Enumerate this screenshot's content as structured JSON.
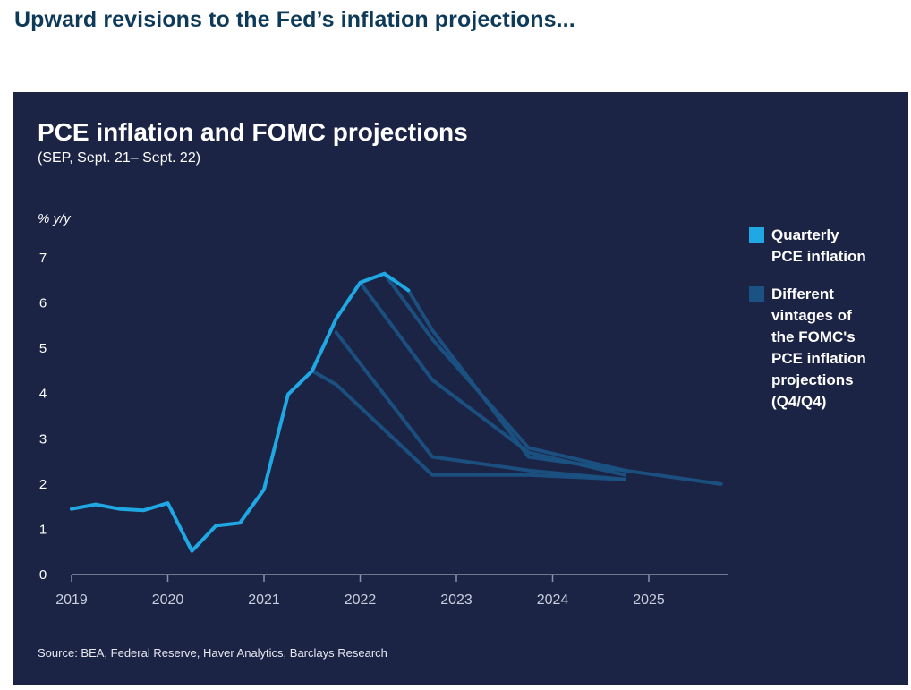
{
  "page": {
    "heading": "Upward revisions to the Fed’s inflation projections..."
  },
  "chart_data": {
    "type": "line",
    "title": "PCE inflation and FOMC projections",
    "subtitle": "(SEP, Sept. 21– Sept. 22)",
    "ylabel": "% y/y",
    "xlabel": "",
    "xlim": [
      2019,
      2026
    ],
    "ylim": [
      0,
      7
    ],
    "y_ticks": [
      "0",
      "1",
      "2",
      "3",
      "4",
      "5",
      "6",
      "7"
    ],
    "x_ticks": [
      "2019",
      "2020",
      "2021",
      "2022",
      "2023",
      "2024",
      "2025"
    ],
    "grid": false,
    "legend_position": "right",
    "colors": {
      "actual": "#1fa8e3",
      "projection": "#1a5283",
      "background": "#1c2445",
      "axis": "#8a93ad"
    },
    "series": [
      {
        "name": "Quarterly PCE inflation",
        "kind": "actual",
        "x": [
          2019.0,
          2019.25,
          2019.5,
          2019.75,
          2020.0,
          2020.25,
          2020.5,
          2020.75,
          2021.0,
          2021.25,
          2021.5,
          2021.75,
          2022.0,
          2022.25,
          2022.5
        ],
        "y": [
          1.45,
          1.55,
          1.45,
          1.42,
          1.58,
          0.52,
          1.08,
          1.14,
          1.88,
          3.98,
          4.5,
          5.65,
          6.45,
          6.65,
          6.28
        ]
      },
      {
        "name": "Different vintages of the FOMC's PCE inflation projections (Q4/Q4)",
        "kind": "projection",
        "vintages": [
          {
            "x": [
              2021.5,
              2021.75,
              2022.75,
              2023.75,
              2024.75
            ],
            "y": [
              4.5,
              4.2,
              2.2,
              2.2,
              2.1
            ]
          },
          {
            "x": [
              2021.75,
              2022.75,
              2023.75,
              2024.75
            ],
            "y": [
              5.35,
              2.6,
              2.3,
              2.1
            ]
          },
          {
            "x": [
              2022.0,
              2022.75,
              2023.75,
              2024.75
            ],
            "y": [
              6.45,
              4.3,
              2.7,
              2.2
            ]
          },
          {
            "x": [
              2022.25,
              2022.75,
              2023.75,
              2024.75
            ],
            "y": [
              6.65,
              5.2,
              2.8,
              2.3
            ]
          },
          {
            "x": [
              2022.5,
              2022.75,
              2023.75,
              2024.75,
              2025.75
            ],
            "y": [
              6.28,
              5.4,
              2.6,
              2.3,
              2.0
            ]
          }
        ]
      }
    ],
    "legend": [
      {
        "label": "Quarterly\nPCE inflation",
        "color": "#1fa8e3"
      },
      {
        "label": "Different\nvintages of\nthe FOMC's\nPCE inflation\nprojections\n(Q4/Q4)",
        "color": "#1a5283"
      }
    ],
    "source": "Source: BEA, Federal Reserve, Haver Analytics, Barclays Research"
  }
}
